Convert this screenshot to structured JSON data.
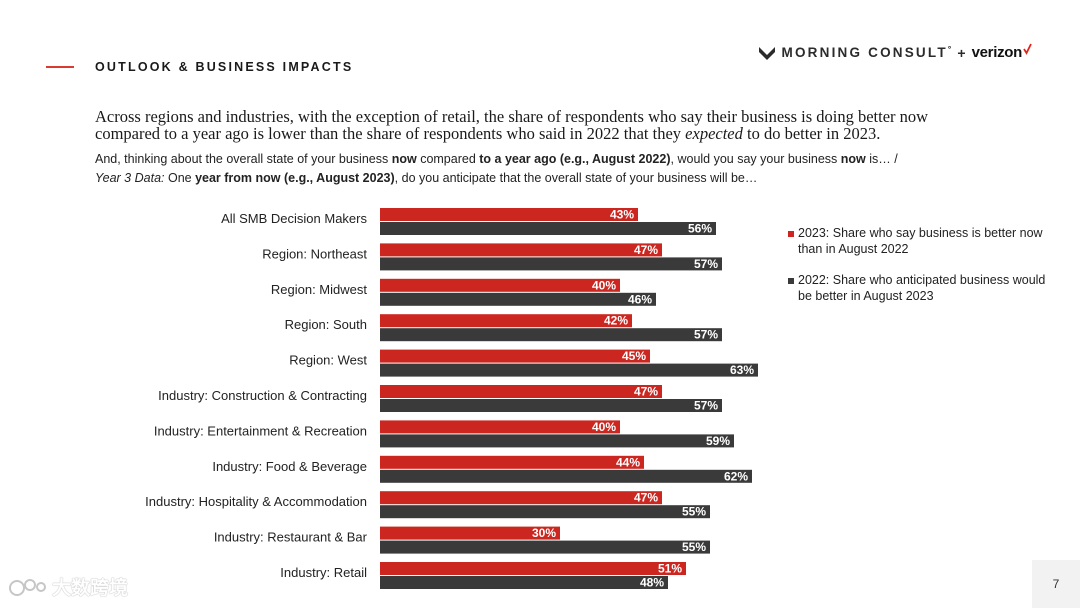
{
  "section": {
    "title": "OUTLOOK & BUSINESS IMPACTS"
  },
  "brand": {
    "name": "MORNING CONSULT",
    "trademark": "°",
    "plus": "+",
    "partner": "verizon"
  },
  "headline": {
    "before": "Across regions and industries, with the exception of retail, the share of respondents who say their business is doing better now compared to a year ago is lower than the share of respondents who said in 2022 that they ",
    "emphasis": "expected",
    "after": " to do better in 2023."
  },
  "question": {
    "p1": "And, thinking about the overall state of your business ",
    "b1": "now",
    "p2": " compared ",
    "b2": "to a year ago (e.g., August 2022)",
    "p3": ", would you say your business ",
    "b3": "now",
    "p4": " is… /",
    "i1": "Year 3 Data:",
    "p5": " One ",
    "b4": "year from now (e.g., August 2023)",
    "p6": ", do you anticipate that the overall state of your business will be…"
  },
  "chart_data": {
    "type": "bar",
    "orientation": "horizontal",
    "categories": [
      "All SMB Decision Makers",
      "Region: Northeast",
      "Region: Midwest",
      "Region: South",
      "Region: West",
      "Industry: Construction & Contracting",
      "Industry: Entertainment & Recreation",
      "Industry: Food & Beverage",
      "Industry: Hospitality & Accommodation",
      "Industry: Restaurant & Bar",
      "Industry: Retail"
    ],
    "series": [
      {
        "name": "2023: Share who say business is better now than in August 2022",
        "color": "#cc2620",
        "values": [
          43,
          47,
          40,
          42,
          45,
          47,
          40,
          44,
          47,
          30,
          51
        ]
      },
      {
        "name": "2022: Share who anticipated business would be better in August 2023",
        "color": "#3a3a3a",
        "values": [
          56,
          57,
          46,
          57,
          63,
          57,
          59,
          62,
          55,
          55,
          48
        ]
      }
    ],
    "value_suffix": "%",
    "xlim": [
      0,
      100
    ],
    "legend_position": "right"
  },
  "legend": {
    "items": [
      {
        "label": "2023: Share who say business is better now than in August 2022",
        "color": "#cc2620"
      },
      {
        "label": "2022: Share who anticipated business would be better in August 2023",
        "color": "#3a3a3a"
      }
    ]
  },
  "page_number": "7",
  "watermark": {
    "text": "大数跨境"
  }
}
